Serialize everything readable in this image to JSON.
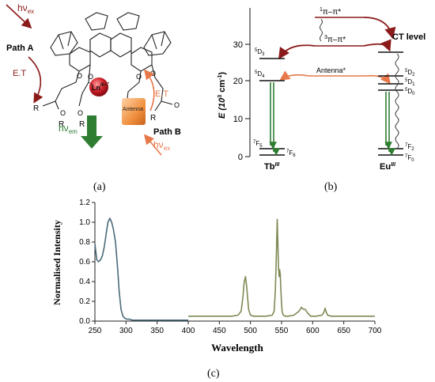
{
  "panel_a": {
    "label": "(a)",
    "path_a": "Path A",
    "path_b": "Path B",
    "et_left": "E.T",
    "et_right": "E.T",
    "hv_ex_left": "hν",
    "hv_ex_left_sub": "ex",
    "hv_ex_right": "hν",
    "hv_ex_right_sub": "ex",
    "hv_em": "hν",
    "hv_em_sub": "em",
    "ln": "Ln",
    "ln_sup": "III",
    "antenna": "Antenna",
    "r_labels": [
      "R",
      "R",
      "R",
      "R"
    ],
    "o_label": "O",
    "colors": {
      "dark_red": "#8b1a1a",
      "orange": "#e8784a",
      "green": "#2e7d32"
    }
  },
  "panel_b": {
    "label": "(b)",
    "yaxis_label": "E (10",
    "yaxis_sup": "3",
    "yaxis_unit": " cm",
    "yaxis_sup2": "-1",
    "yaxis_close": ")",
    "ticks": [
      "0",
      "10",
      "20",
      "30"
    ],
    "singlet": "π–π*",
    "singlet_sup": "1",
    "triplet": "π–π*",
    "triplet_sup": "3",
    "antenna_state": "Antenna*",
    "ct_level": "CT level",
    "tb_label": "Tb",
    "tb_sup": "III",
    "eu_label": "Eu",
    "eu_sup": "III",
    "tb_levels": [
      "D",
      "D",
      "F",
      "F"
    ],
    "tb_levels_sup": [
      "5",
      "5",
      "7",
      "7"
    ],
    "tb_levels_sub": [
      "3",
      "4",
      "5",
      "6"
    ],
    "eu_levels": [
      "D",
      "D",
      "D",
      "F",
      "F"
    ],
    "eu_levels_sup": [
      "5",
      "5",
      "5",
      "7",
      "7"
    ],
    "eu_levels_sub": [
      "2",
      "1",
      "0",
      "2",
      "0"
    ]
  },
  "panel_c": {
    "label": "(c)",
    "chart_data": {
      "type": "line",
      "xlabel": "Wavelength",
      "ylabel": "Normalised Intensity",
      "xlim": [
        250,
        700
      ],
      "ylim": [
        0.0,
        1.2
      ],
      "x_ticks": [
        "250",
        "300",
        "350",
        "400",
        "450",
        "500",
        "550",
        "600",
        "650",
        "700"
      ],
      "y_ticks": [
        "0.0",
        "0.2",
        "0.4",
        "0.6",
        "0.8",
        "1.0",
        "1.2"
      ],
      "series": [
        {
          "color": "#4a6a7a",
          "x": [
            250,
            253,
            256,
            259,
            262,
            265,
            268,
            271,
            274,
            277,
            280,
            283,
            286,
            289,
            292,
            295,
            298,
            301,
            305,
            310,
            320,
            340,
            360,
            380,
            400
          ],
          "y": [
            0.78,
            0.62,
            0.6,
            0.62,
            0.66,
            0.75,
            0.88,
            1.0,
            1.04,
            1.0,
            0.92,
            0.8,
            0.58,
            0.3,
            0.12,
            0.05,
            0.03,
            0.02,
            0.02,
            0.01,
            0.01,
            0.01,
            0.01,
            0.01,
            0.01
          ]
        },
        {
          "color": "#7d8a55",
          "x": [
            400,
            450,
            470,
            480,
            485,
            488,
            490,
            492,
            494,
            497,
            500,
            505,
            515,
            525,
            535,
            538,
            540,
            542,
            543,
            544,
            545,
            546,
            547,
            548,
            549,
            550,
            551,
            553,
            556,
            560,
            570,
            578,
            582,
            585,
            588,
            592,
            597,
            605,
            615,
            618,
            620,
            622,
            624,
            630,
            640,
            650,
            660,
            670,
            680,
            690,
            700
          ],
          "y": [
            0.05,
            0.05,
            0.05,
            0.06,
            0.1,
            0.25,
            0.4,
            0.45,
            0.35,
            0.12,
            0.06,
            0.05,
            0.05,
            0.05,
            0.06,
            0.1,
            0.3,
            0.75,
            1.03,
            0.8,
            0.55,
            0.45,
            0.52,
            0.47,
            0.3,
            0.18,
            0.09,
            0.06,
            0.05,
            0.05,
            0.06,
            0.1,
            0.14,
            0.12,
            0.12,
            0.08,
            0.05,
            0.05,
            0.06,
            0.09,
            0.13,
            0.09,
            0.06,
            0.05,
            0.05,
            0.05,
            0.05,
            0.05,
            0.05,
            0.05,
            0.05
          ]
        }
      ],
      "grid": false,
      "legend": "none"
    }
  }
}
